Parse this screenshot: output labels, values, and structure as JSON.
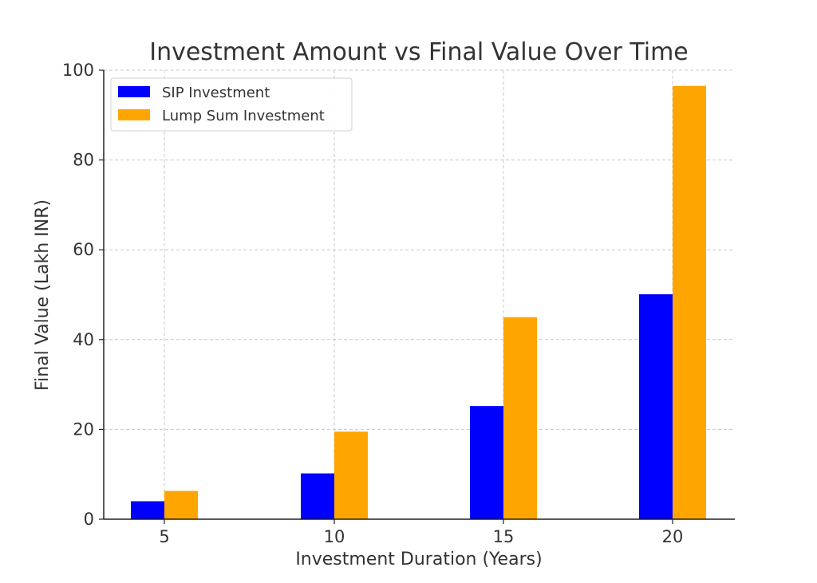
{
  "chart_data": {
    "type": "bar",
    "title": "Investment Amount vs Final Value Over Time",
    "xlabel": "Investment Duration (Years)",
    "ylabel": "Final Value (Lakh INR)",
    "categories": [
      "5",
      "10",
      "15",
      "20"
    ],
    "x_tick_labels": [
      "5",
      "10",
      "15",
      "20"
    ],
    "y_tick_labels": [
      "0",
      "20",
      "40",
      "60",
      "80",
      "100"
    ],
    "y_ticks": [
      0,
      20,
      40,
      60,
      80,
      100
    ],
    "ylim": [
      0,
      100
    ],
    "grid": true,
    "legend_position": "top-left",
    "series": [
      {
        "name": "SIP Investment",
        "color": "#0000ff",
        "values": [
          4,
          10.2,
          25.2,
          50.1
        ]
      },
      {
        "name": "Lump Sum Investment",
        "color": "#ffa500",
        "values": [
          6.3,
          19.5,
          45.0,
          96.5
        ]
      }
    ]
  }
}
